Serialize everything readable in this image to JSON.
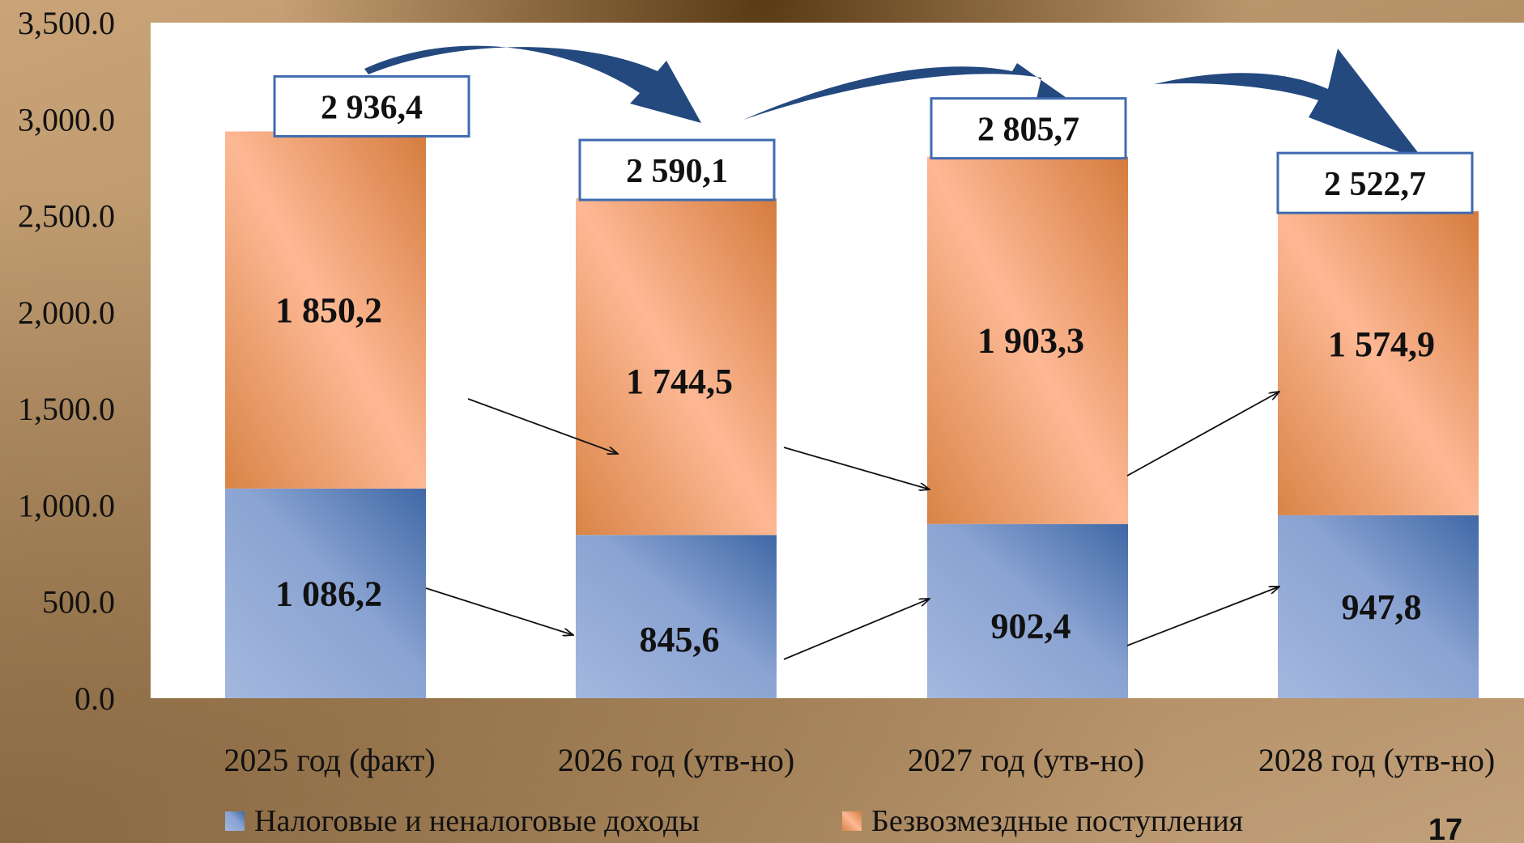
{
  "chart_data": {
    "type": "bar",
    "stacked": true,
    "categories": [
      "2025 год (факт)",
      "2026 год (утв-но)",
      "2027 год (утв-но)",
      "2028 год (утв-но)"
    ],
    "series": [
      {
        "name": "Налоговые и неналоговые доходы",
        "values": [
          1086.2,
          845.6,
          902.4,
          947.8
        ],
        "labels": [
          "1 086,2",
          "845,6",
          "902,4",
          "947,8"
        ],
        "color": "#6f8fc4"
      },
      {
        "name": "Безвозмездные поступления",
        "values": [
          1850.2,
          1744.5,
          1903.3,
          1574.9
        ],
        "labels": [
          "1 850,2",
          "1 744,5",
          "1 903,3",
          "1 574,9"
        ],
        "color": "#f0a276"
      }
    ],
    "totals": [
      2936.4,
      2590.1,
      2805.7,
      2522.7
    ],
    "total_labels": [
      "2 936,4",
      "2 590,1",
      "2 805,7",
      "2 522,7"
    ],
    "ylim": [
      0,
      3500
    ],
    "yticks": [
      0,
      500,
      1000,
      1500,
      2000,
      2500,
      3000,
      3500
    ],
    "ytick_labels": [
      "0.0",
      "500.0",
      "1,000.0",
      "1,500.0",
      "2,000.0",
      "2,500.0",
      "3,000.0",
      "3,500.0"
    ],
    "title": "",
    "xlabel": "",
    "ylabel": "",
    "legend_position": "bottom",
    "grid": false
  },
  "page_number": "17"
}
